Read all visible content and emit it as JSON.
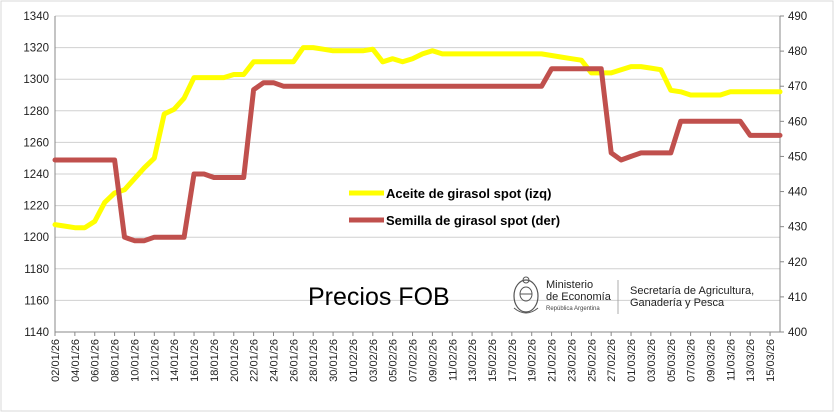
{
  "chart_data": {
    "type": "line",
    "title": "Precios FOB",
    "x": [
      "02/01/26",
      "03/01/26",
      "04/01/26",
      "05/01/26",
      "06/01/26",
      "07/01/26",
      "08/01/26",
      "09/01/26",
      "10/01/26",
      "11/01/26",
      "12/01/26",
      "13/01/26",
      "14/01/26",
      "15/01/26",
      "16/01/26",
      "17/01/26",
      "18/01/26",
      "19/01/26",
      "20/01/26",
      "21/01/26",
      "22/01/26",
      "23/01/26",
      "24/01/26",
      "25/01/26",
      "26/01/26",
      "27/01/26",
      "28/01/26",
      "29/01/26",
      "30/01/26",
      "31/01/26",
      "01/02/26",
      "02/02/26",
      "03/02/26",
      "04/02/26",
      "05/02/26",
      "06/02/26",
      "07/02/26",
      "08/02/26",
      "09/02/26",
      "10/02/26",
      "11/02/26",
      "12/02/26",
      "13/02/26",
      "14/02/26",
      "15/02/26",
      "16/02/26",
      "17/02/26",
      "18/02/26",
      "19/02/26",
      "20/02/26",
      "21/02/26",
      "22/02/26",
      "23/02/26",
      "24/02/26",
      "25/02/26",
      "26/02/26",
      "27/02/26",
      "28/02/26",
      "01/03/26",
      "02/03/26",
      "03/03/26",
      "04/03/26",
      "05/03/26",
      "06/03/26",
      "07/03/26",
      "08/03/26",
      "09/03/26",
      "10/03/26",
      "11/03/26",
      "12/03/26",
      "13/03/26",
      "14/03/26",
      "15/03/26",
      "16/03/26"
    ],
    "x_tick_labels": [
      "02/01/26",
      "04/01/26",
      "06/01/26",
      "08/01/26",
      "10/01/26",
      "12/01/26",
      "14/01/26",
      "16/01/26",
      "18/01/26",
      "20/01/26",
      "22/01/26",
      "24/01/26",
      "26/01/26",
      "28/01/26",
      "30/01/26",
      "01/02/26",
      "03/02/26",
      "05/02/26",
      "07/02/26",
      "09/02/26",
      "11/02/26",
      "13/02/26",
      "15/02/26",
      "17/02/26",
      "19/02/26",
      "21/02/26",
      "23/02/26",
      "25/02/26",
      "27/02/26",
      "01/03/26",
      "03/03/26",
      "05/03/26",
      "07/03/26",
      "09/03/26",
      "11/03/26",
      "13/03/26",
      "15/03/26"
    ],
    "y_left": {
      "min": 1140,
      "max": 1340,
      "step": 20
    },
    "y_right": {
      "min": 400,
      "max": 490,
      "step": 10
    },
    "grid": true,
    "legend_placement": "center",
    "series": [
      {
        "name": "Aceite de girasol spot (izq)",
        "axis": "left",
        "color": "#ffff00",
        "values": [
          1208,
          1207,
          1206,
          1206,
          1210,
          1222,
          1228,
          1230,
          1237,
          1244,
          1250,
          1278,
          1281,
          1288,
          1301,
          1301,
          1301,
          1301,
          1303,
          1303,
          1311,
          1311,
          1311,
          1311,
          1311,
          1320,
          1320,
          1319,
          1318,
          1318,
          1318,
          1318,
          1319,
          1311,
          1313,
          1311,
          1313,
          1316,
          1318,
          1316,
          1316,
          1316,
          1316,
          1316,
          1316,
          1316,
          1316,
          1316,
          1316,
          1316,
          1315,
          1314,
          1313,
          1312,
          1304,
          1304,
          1304,
          1306,
          1308,
          1308,
          1307,
          1306,
          1293,
          1292,
          1290,
          1290,
          1290,
          1290,
          1292,
          1292,
          1292,
          1292,
          1292,
          1292
        ]
      },
      {
        "name": "Semilla de girasol spot (der)",
        "axis": "right",
        "color": "#c0504d",
        "values": [
          449,
          449,
          449,
          449,
          449,
          449,
          449,
          427,
          426,
          426,
          427,
          427,
          427,
          427,
          445,
          445,
          444,
          444,
          444,
          444,
          469,
          471,
          471,
          470,
          470,
          470,
          470,
          470,
          470,
          470,
          470,
          470,
          470,
          470,
          470,
          470,
          470,
          470,
          470,
          470,
          470,
          470,
          470,
          470,
          470,
          470,
          470,
          470,
          470,
          470,
          475,
          475,
          475,
          475,
          475,
          475,
          451,
          449,
          450,
          451,
          451,
          451,
          451,
          460,
          460,
          460,
          460,
          460,
          460,
          460,
          456,
          456,
          456,
          456
        ]
      }
    ]
  },
  "logo": {
    "ministry_line1": "Ministerio",
    "ministry_line2": "de Economía",
    "ministry_sub": "República Argentina",
    "secretariat_line1": "Secretaría de Agricultura,",
    "secretariat_line2": "Ganadería y Pesca"
  }
}
